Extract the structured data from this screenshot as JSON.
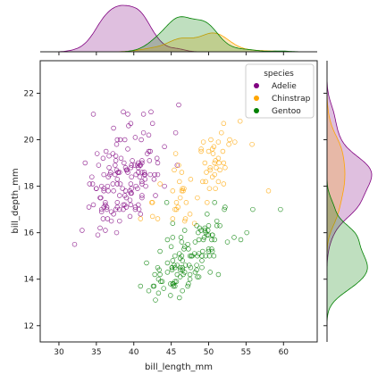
{
  "chart_data": {
    "type": "scatter",
    "xlabel": "bill_length_mm",
    "ylabel": "bill_depth_mm",
    "xlim": [
      27.5,
      64.5
    ],
    "ylim": [
      11.3,
      23.4
    ],
    "xticks": [
      30,
      35,
      40,
      45,
      50,
      55,
      60
    ],
    "yticks": [
      12,
      14,
      16,
      18,
      20,
      22
    ],
    "legend": {
      "title": "species",
      "placement": "top-right"
    },
    "marginal": "kde",
    "series": [
      {
        "name": "Adelie",
        "color": "#800080",
        "x": [
          39.1,
          39.5,
          40.3,
          36.7,
          39.3,
          38.9,
          39.2,
          34.1,
          42.0,
          37.8,
          37.8,
          41.1,
          38.6,
          34.6,
          36.6,
          38.7,
          42.5,
          34.4,
          46.0,
          37.8,
          37.7,
          35.9,
          38.2,
          38.8,
          35.3,
          40.6,
          40.5,
          37.9,
          40.5,
          39.5,
          37.2,
          39.5,
          40.9,
          36.4,
          39.2,
          38.8,
          42.2,
          37.6,
          39.8,
          36.5,
          40.8,
          36.0,
          44.1,
          37.0,
          39.6,
          41.1,
          37.5,
          36.0,
          42.3,
          39.6,
          40.1,
          35.0,
          42.0,
          34.5,
          41.4,
          39.0,
          40.6,
          36.5,
          37.6,
          35.7,
          41.3,
          37.6,
          41.1,
          36.4,
          41.6,
          35.5,
          41.1,
          35.9,
          41.8,
          33.5,
          39.7,
          39.6,
          45.8,
          35.5,
          42.8,
          40.9,
          37.2,
          36.2,
          42.1,
          34.6,
          42.9,
          36.7,
          35.1,
          37.3,
          41.3,
          36.3,
          36.9,
          38.3,
          38.9,
          35.7,
          41.1,
          34.0,
          39.6,
          36.2,
          40.8,
          38.1,
          40.3,
          33.1,
          43.2,
          35.0,
          41.0,
          37.7,
          37.8,
          37.9,
          39.7,
          38.6,
          38.2,
          38.1,
          43.2,
          38.1,
          45.6,
          39.7,
          42.2,
          39.6,
          42.7,
          38.6,
          37.3,
          35.7,
          41.1,
          36.2,
          37.7,
          40.2,
          41.4,
          35.2,
          40.6,
          38.8,
          41.5,
          39.0,
          44.1,
          38.5,
          43.1,
          36.8,
          37.5,
          38.1,
          41.1,
          35.6,
          40.2,
          37.0,
          39.7,
          40.2,
          40.6,
          32.1,
          40.7,
          37.3,
          39.0,
          39.2,
          36.6,
          36.0,
          37.8,
          36.0,
          41.5
        ],
        "y": [
          18.7,
          17.4,
          18.0,
          19.3,
          20.6,
          17.8,
          19.6,
          18.1,
          20.2,
          17.1,
          17.3,
          17.6,
          21.2,
          21.1,
          17.8,
          19.0,
          20.7,
          18.4,
          21.5,
          18.3,
          18.7,
          19.2,
          18.1,
          17.2,
          18.9,
          18.6,
          17.9,
          18.6,
          18.9,
          16.7,
          18.1,
          17.8,
          18.9,
          17.0,
          21.1,
          20.0,
          18.5,
          19.3,
          19.1,
          18.0,
          18.4,
          18.5,
          19.7,
          16.9,
          18.8,
          19.0,
          18.9,
          17.9,
          21.2,
          17.7,
          18.9,
          17.9,
          19.5,
          18.1,
          18.6,
          17.5,
          18.8,
          16.6,
          19.1,
          16.9,
          21.1,
          17.0,
          18.2,
          17.1,
          18.0,
          16.2,
          19.1,
          16.6,
          19.4,
          19.0,
          18.4,
          17.2,
          18.9,
          17.5,
          18.5,
          16.8,
          19.4,
          16.1,
          19.1,
          17.2,
          17.6,
          18.8,
          19.4,
          17.8,
          20.3,
          19.5,
          18.6,
          19.2,
          18.8,
          18.0,
          18.1,
          17.1,
          18.1,
          17.3,
          18.9,
          18.6,
          18.5,
          16.1,
          18.5,
          17.9,
          20.0,
          16.0,
          20.0,
          18.6,
          18.9,
          17.2,
          20.0,
          17.0,
          19.0,
          16.5,
          20.3,
          17.7,
          19.5,
          20.7,
          18.3,
          17.0,
          20.5,
          17.0,
          18.6,
          17.2,
          19.8,
          17.0,
          18.5,
          15.9,
          19.0,
          17.6,
          18.3,
          17.1,
          18.0,
          17.9,
          19.2,
          18.5,
          18.5,
          17.6,
          17.5,
          17.5,
          20.1,
          16.5,
          17.9,
          17.1,
          17.2,
          15.5,
          17.0,
          16.8,
          18.7,
          18.6,
          18.4,
          17.8,
          18.1,
          17.1,
          18.5
        ]
      },
      {
        "name": "Chinstrap",
        "color": "#FFA500",
        "x": [
          46.5,
          50.0,
          51.3,
          45.4,
          52.7,
          45.2,
          46.1,
          51.3,
          46.0,
          51.3,
          46.6,
          51.7,
          47.0,
          52.0,
          45.9,
          50.5,
          50.3,
          58.0,
          46.4,
          49.2,
          42.4,
          48.5,
          43.2,
          50.6,
          46.7,
          52.0,
          50.5,
          49.5,
          46.4,
          52.8,
          40.9,
          54.2,
          42.5,
          51.0,
          49.7,
          47.5,
          47.6,
          52.0,
          46.9,
          53.5,
          49.0,
          46.2,
          50.9,
          45.5,
          50.9,
          50.8,
          50.1,
          49.0,
          51.5,
          49.8,
          48.1,
          51.4,
          45.7,
          50.7,
          42.5,
          52.2,
          45.2,
          49.3,
          50.2,
          45.6,
          51.9,
          46.8,
          45.7,
          55.8,
          43.5,
          49.6,
          50.8,
          50.2
        ],
        "y": [
          17.9,
          19.5,
          19.2,
          18.7,
          19.8,
          17.8,
          18.2,
          18.2,
          18.9,
          19.9,
          17.8,
          20.3,
          17.3,
          18.1,
          17.1,
          19.6,
          20.0,
          17.8,
          18.6,
          18.2,
          17.3,
          17.5,
          16.6,
          19.4,
          17.9,
          19.0,
          18.4,
          19.0,
          17.8,
          20.0,
          16.6,
          20.8,
          16.7,
          18.8,
          18.6,
          16.8,
          18.3,
          20.7,
          16.6,
          19.9,
          19.5,
          17.5,
          19.1,
          17.0,
          17.9,
          18.5,
          17.9,
          19.6,
          18.7,
          17.3,
          16.4,
          19.0,
          17.3,
          19.7,
          17.3,
          18.8,
          16.6,
          19.9,
          18.8,
          19.4,
          19.5,
          16.5,
          17.0,
          19.8,
          18.1,
          18.2,
          19.0,
          18.7
        ]
      },
      {
        "name": "Gentoo",
        "color": "#008000",
        "x": [
          46.1,
          50.0,
          48.7,
          50.0,
          47.6,
          46.5,
          45.4,
          46.7,
          43.3,
          46.8,
          40.9,
          49.0,
          45.5,
          48.4,
          45.8,
          49.3,
          42.0,
          49.2,
          46.2,
          48.7,
          50.2,
          45.1,
          46.5,
          46.3,
          42.9,
          46.1,
          44.5,
          47.8,
          48.2,
          50.0,
          47.3,
          42.8,
          45.1,
          59.6,
          49.1,
          48.4,
          42.6,
          44.4,
          44.0,
          48.7,
          42.7,
          49.6,
          45.3,
          49.6,
          50.5,
          43.6,
          45.5,
          50.5,
          44.9,
          45.2,
          46.6,
          48.5,
          45.1,
          50.1,
          46.5,
          45.0,
          43.8,
          45.5,
          43.2,
          50.4,
          45.3,
          46.2,
          45.7,
          54.3,
          45.8,
          49.8,
          46.2,
          49.5,
          43.5,
          50.7,
          47.7,
          46.4,
          48.2,
          46.5,
          46.4,
          48.6,
          47.5,
          51.1,
          45.2,
          45.2,
          49.1,
          52.5,
          47.4,
          50.0,
          44.9,
          50.8,
          43.4,
          51.3,
          47.5,
          52.1,
          47.5,
          52.2,
          45.5,
          49.5,
          44.5,
          50.8,
          49.4,
          46.9,
          48.4,
          51.1,
          48.5,
          55.9,
          47.2,
          49.1,
          47.3,
          46.8,
          41.7,
          53.4,
          43.3,
          48.1,
          50.5,
          49.8,
          43.5,
          51.5,
          46.2,
          55.1,
          44.5,
          48.8,
          47.2,
          46.8,
          50.4,
          45.2,
          49.9
        ],
        "y": [
          13.2,
          16.3,
          14.1,
          15.2,
          14.5,
          13.5,
          14.6,
          15.3,
          13.4,
          15.4,
          13.7,
          16.1,
          13.7,
          14.6,
          14.6,
          15.7,
          13.5,
          15.2,
          14.5,
          15.1,
          14.3,
          14.5,
          14.5,
          15.8,
          13.1,
          15.1,
          14.3,
          15.0,
          14.3,
          15.3,
          15.3,
          14.2,
          14.5,
          17.0,
          14.8,
          16.3,
          13.7,
          17.3,
          13.6,
          15.7,
          13.7,
          16.0,
          13.7,
          15.0,
          15.9,
          13.9,
          13.9,
          15.9,
          13.3,
          15.8,
          14.2,
          14.1,
          14.4,
          15.0,
          14.4,
          15.4,
          13.9,
          15.0,
          14.5,
          15.3,
          13.8,
          14.9,
          13.9,
          15.7,
          14.2,
          16.8,
          14.4,
          16.2,
          14.2,
          15.0,
          15.0,
          15.6,
          15.6,
          14.8,
          15.0,
          16.0,
          14.2,
          16.3,
          13.8,
          16.4,
          14.5,
          15.6,
          14.6,
          15.9,
          13.8,
          17.3,
          14.4,
          14.2,
          14.0,
          17.0,
          15.0,
          17.1,
          14.5,
          16.1,
          14.7,
          15.7,
          15.8,
          14.6,
          14.4,
          16.5,
          15.0,
          17.0,
          15.5,
          15.0,
          13.8,
          16.1,
          14.7,
          15.8,
          14.0,
          15.1,
          15.2,
          15.9,
          15.2,
          16.3,
          14.1,
          16.0,
          15.7,
          16.2,
          13.7,
          14.3,
          15.7,
          14.8,
          16.1
        ]
      }
    ]
  }
}
